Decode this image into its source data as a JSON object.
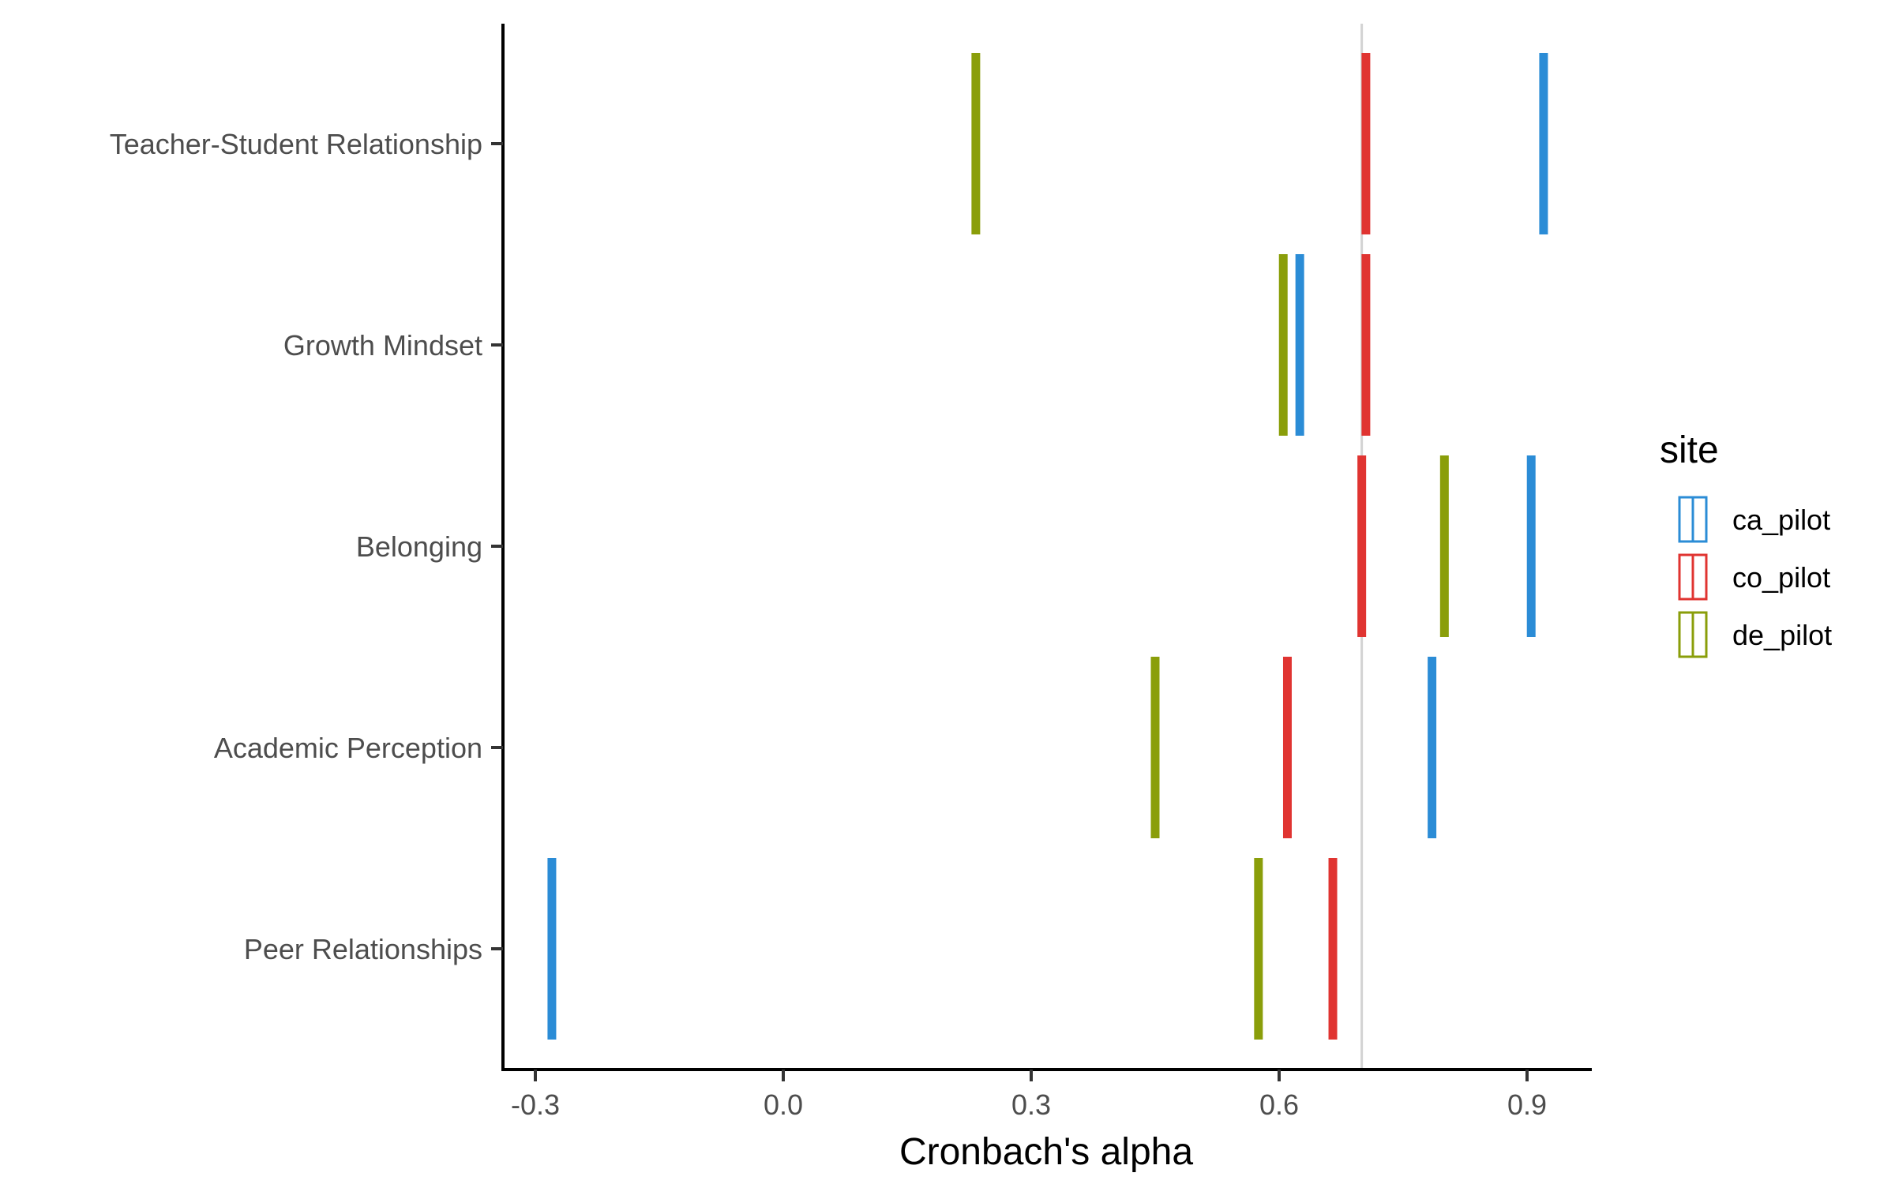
{
  "chart_data": {
    "type": "scatter",
    "xlabel": "Cronbach's alpha",
    "ylabel": "",
    "xlim": [
      -0.335,
      0.98
    ],
    "x_ticks": [
      -0.3,
      0.0,
      0.3,
      0.6,
      0.9
    ],
    "x_tick_labels": [
      "-0.3",
      "0.0",
      "0.3",
      "0.6",
      "0.9"
    ],
    "reference_line": 0.7,
    "categories": [
      "Teacher-Student Relationship",
      "Growth Mindset",
      "Belonging",
      "Academic Perception",
      "Peer Relationships"
    ],
    "legend_title": "site",
    "legend_position": "right",
    "grid": false,
    "series": [
      {
        "name": "ca_pilot",
        "color": "#2B8CD6",
        "values": [
          0.92,
          0.625,
          0.905,
          0.785,
          -0.28
        ]
      },
      {
        "name": "co_pilot",
        "color": "#E03431",
        "values": [
          0.705,
          0.705,
          0.7,
          0.61,
          0.665
        ]
      },
      {
        "name": "de_pilot",
        "color": "#8A9E0A",
        "values": [
          0.233,
          0.605,
          0.8,
          0.45,
          0.575
        ]
      }
    ]
  }
}
